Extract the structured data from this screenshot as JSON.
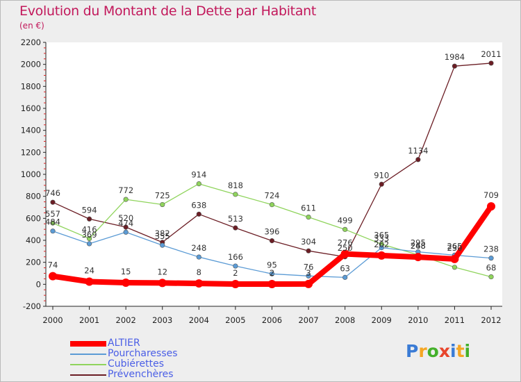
{
  "title": "Evolution du Montant de la Dette par Habitant",
  "unit": "(en €)",
  "logo": {
    "letters": [
      "P",
      "r",
      "o",
      "x",
      "i",
      "t",
      "i"
    ],
    "colors": [
      "#3a7bd5",
      "#f5a623",
      "#43b02a",
      "#e8452c",
      "#3a7bd5",
      "#f5a623",
      "#43b02a"
    ]
  },
  "chart_data": {
    "type": "line",
    "x": [
      "2000",
      "2001",
      "2002",
      "2003",
      "2004",
      "2005",
      "2006",
      "2007",
      "2008",
      "2009",
      "2010",
      "2011",
      "2012"
    ],
    "ylim": [
      -200,
      2200
    ],
    "yticks": [
      "-200",
      "0",
      "200",
      "400",
      "600",
      "800",
      "1000",
      "1200",
      "1400",
      "1600",
      "1800",
      "2000",
      "2200"
    ],
    "grid": false,
    "legend": "bottom-left",
    "series": [
      {
        "name": "ALTIER",
        "color": "#ff0000",
        "values": [
          74,
          24,
          15,
          12,
          8,
          2,
          2,
          3,
          276,
          262,
          248,
          230,
          709
        ],
        "labels": [
          "74",
          "24",
          "15",
          "12",
          "8",
          "2",
          "",
          "",
          "",
          "",
          "",
          "",
          ""
        ]
      },
      {
        "name": "Pourcharesses",
        "color": "#5b9bd5",
        "values": [
          484,
          369,
          474,
          355,
          248,
          166,
          95,
          76,
          63,
          333,
          295,
          265,
          238
        ],
        "labels": [
          "484",
          "",
          "474",
          "",
          "248",
          "166",
          "95",
          "76",
          "63",
          "333",
          "",
          "",
          "238"
        ]
      },
      {
        "name": "Cubiérettes",
        "color": "#8fd45c",
        "values": [
          557,
          416,
          772,
          725,
          914,
          818,
          724,
          611,
          499,
          365,
          268,
          155,
          68
        ],
        "labels": [
          "557",
          "416",
          "772",
          "725",
          "914",
          "818",
          "724",
          "611",
          "499",
          "365",
          "",
          "",
          "68"
        ]
      },
      {
        "name": "Prévenchères",
        "color": "#6b1d24",
        "values": [
          746,
          594,
          520,
          382,
          638,
          513,
          396,
          304,
          250,
          910,
          1134,
          1984,
          2011
        ],
        "labels": [
          "746",
          "594",
          "520",
          "382",
          "638",
          "513",
          "396",
          "304",
          "",
          "910",
          "1134",
          "1984",
          "2011"
        ]
      }
    ],
    "extra_labels": [
      {
        "series": "ALTIER",
        "index": 6,
        "text": "2"
      },
      {
        "series": "ALTIER",
        "index": 7,
        "text": "3"
      },
      {
        "series": "ALTIER",
        "index": 8,
        "text": "276"
      },
      {
        "series": "ALTIER",
        "index": 9,
        "text": "262"
      },
      {
        "series": "ALTIER",
        "index": 10,
        "text": "248"
      },
      {
        "series": "ALTIER",
        "index": 11,
        "text": "230"
      },
      {
        "series": "ALTIER",
        "index": 12,
        "text": "709"
      },
      {
        "series": "Pourcharesses",
        "index": 1,
        "text": "369"
      },
      {
        "series": "Pourcharesses",
        "index": 3,
        "text": "355"
      },
      {
        "series": "Pourcharesses",
        "index": 10,
        "text": "295"
      },
      {
        "series": "Pourcharesses",
        "index": 11,
        "text": "265"
      },
      {
        "series": "Cubiérettes",
        "index": 10,
        "text": "268"
      },
      {
        "series": "Prévenchères",
        "index": 8,
        "text": "250"
      }
    ]
  }
}
